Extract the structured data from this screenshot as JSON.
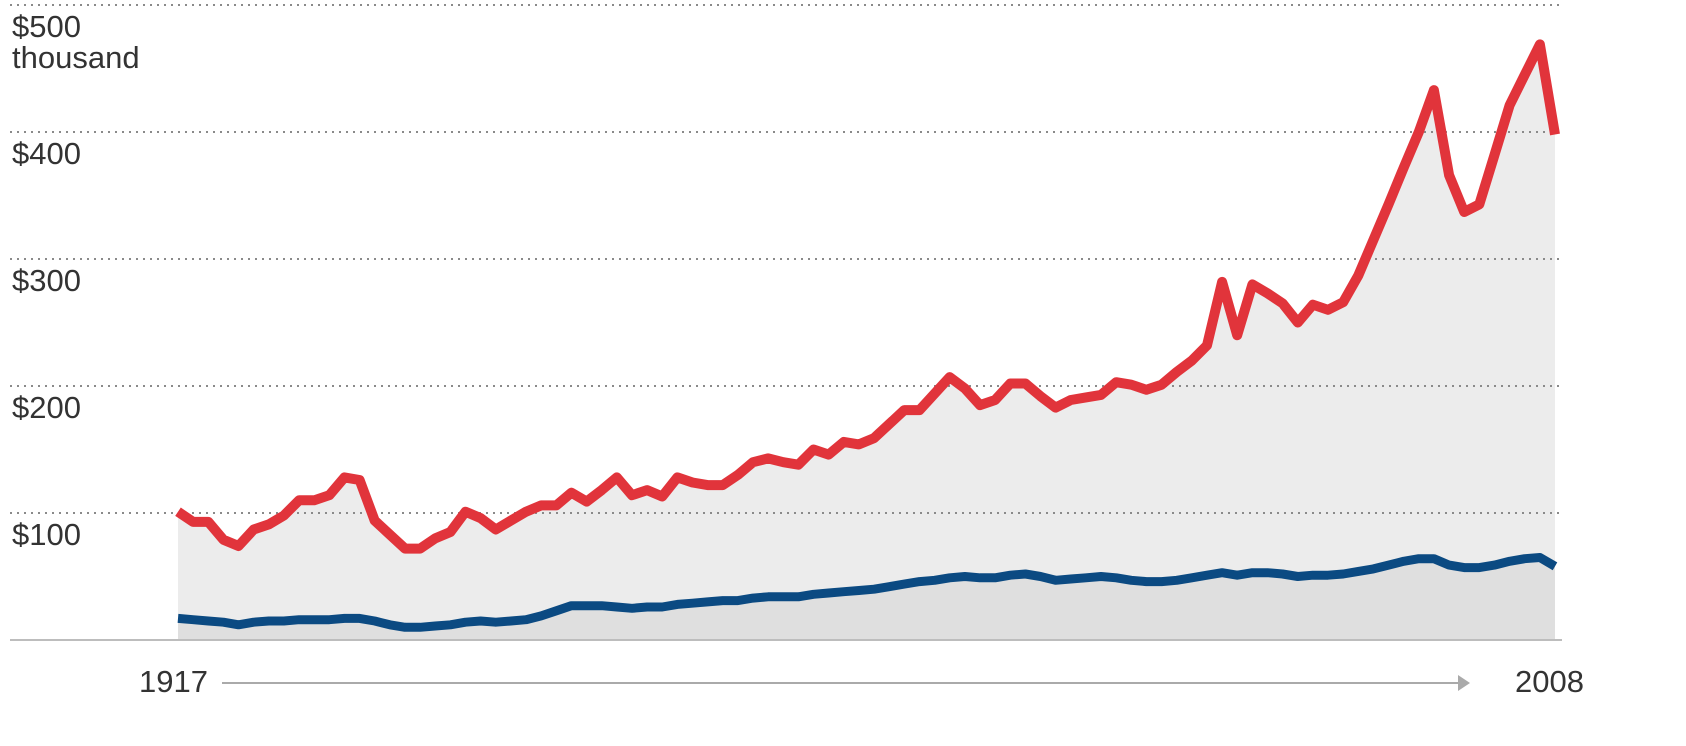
{
  "chart_data": {
    "type": "area_line",
    "ylabel": "thousand",
    "x": [
      1917,
      1918,
      1919,
      1920,
      1921,
      1922,
      1923,
      1924,
      1925,
      1926,
      1927,
      1928,
      1929,
      1930,
      1931,
      1932,
      1933,
      1934,
      1935,
      1936,
      1937,
      1938,
      1939,
      1940,
      1941,
      1942,
      1943,
      1944,
      1945,
      1946,
      1947,
      1948,
      1949,
      1950,
      1951,
      1952,
      1953,
      1954,
      1955,
      1956,
      1957,
      1958,
      1959,
      1960,
      1961,
      1962,
      1963,
      1964,
      1965,
      1966,
      1967,
      1968,
      1969,
      1970,
      1971,
      1972,
      1973,
      1974,
      1975,
      1976,
      1977,
      1978,
      1979,
      1980,
      1981,
      1982,
      1983,
      1984,
      1985,
      1986,
      1987,
      1988,
      1989,
      1990,
      1991,
      1992,
      1993,
      1994,
      1995,
      1996,
      1997,
      1998,
      1999,
      2000,
      2001,
      2002,
      2003,
      2004,
      2005,
      2006,
      2007,
      2008
    ],
    "series": [
      {
        "color": "#e1343b",
        "fill": "#ececec",
        "values": [
          101,
          93,
          93,
          79,
          74,
          87,
          91,
          98,
          110,
          110,
          114,
          128,
          126,
          94,
          83,
          72,
          72,
          80,
          85,
          101,
          96,
          87,
          94,
          101,
          106,
          106,
          116,
          109,
          118,
          128,
          114,
          118,
          113,
          128,
          124,
          122,
          122,
          130,
          140,
          143,
          140,
          138,
          150,
          146,
          156,
          154,
          159,
          170,
          181,
          181,
          194,
          207,
          198,
          185,
          189,
          202,
          202,
          192,
          183,
          189,
          191,
          193,
          203,
          201,
          197,
          201,
          211,
          220,
          232,
          282,
          240,
          280,
          273,
          265,
          250,
          264,
          260,
          266,
          287,
          315,
          343,
          372,
          400,
          433,
          366,
          337,
          343,
          382,
          421,
          445,
          469,
          398
        ]
      },
      {
        "color": "#0b4a82",
        "fill": "#dfdfdf",
        "values": [
          17,
          16,
          15,
          14,
          12,
          14,
          15,
          15,
          16,
          16,
          16,
          17,
          17,
          15,
          12,
          10,
          10,
          11,
          12,
          14,
          15,
          14,
          15,
          16,
          19,
          23,
          27,
          27,
          27,
          26,
          25,
          26,
          26,
          28,
          29,
          30,
          31,
          31,
          33,
          34,
          34,
          34,
          36,
          37,
          38,
          39,
          40,
          42,
          44,
          46,
          47,
          49,
          50,
          49,
          49,
          51,
          52,
          50,
          47,
          48,
          49,
          50,
          49,
          47,
          46,
          46,
          47,
          49,
          51,
          53,
          51,
          53,
          53,
          52,
          50,
          51,
          51,
          52,
          54,
          56,
          59,
          62,
          64,
          64,
          59,
          57,
          57,
          59,
          62,
          64,
          65,
          58
        ]
      }
    ],
    "xlim": [
      1917,
      2008
    ],
    "xticks": [
      1917,
      2008
    ],
    "ylim": [
      0,
      500
    ],
    "yticks": [
      {
        "value": 100,
        "label": "$100"
      },
      {
        "value": 200,
        "label": "$200"
      },
      {
        "value": 300,
        "label": "$300"
      },
      {
        "value": 400,
        "label": "$400"
      },
      {
        "value": 500,
        "label": "$500"
      }
    ],
    "grid": true
  }
}
